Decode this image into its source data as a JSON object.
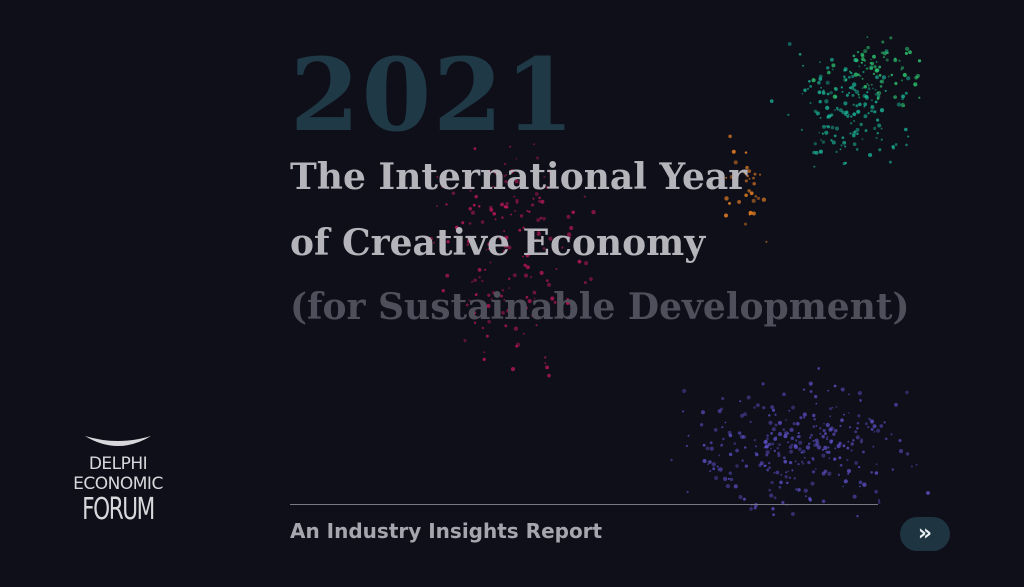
{
  "slide": {
    "year": "2021",
    "title_line1": "The International Year",
    "title_line2": "of Creative Economy",
    "title_line3": "(for Sustainable Development)",
    "subtitle": "An Industry Insights Report",
    "next_button_label": "»"
  },
  "logo": {
    "icon": "wing-arc-icon",
    "line1": "DELPHI",
    "line2": "ECONOMIC",
    "line3": "FORUM"
  },
  "colors": {
    "background": "#0f0f1a",
    "year": "#1f3a46",
    "title": "#b4b4ba",
    "title_muted": "#4f4f5c",
    "button_bg": "#1e3440",
    "particles_pink": "#c2185b",
    "particles_orange": "#e67e22",
    "particles_green": "#2ecc71",
    "particles_teal": "#1abc9c",
    "particles_purple": "#6c5ce7"
  }
}
